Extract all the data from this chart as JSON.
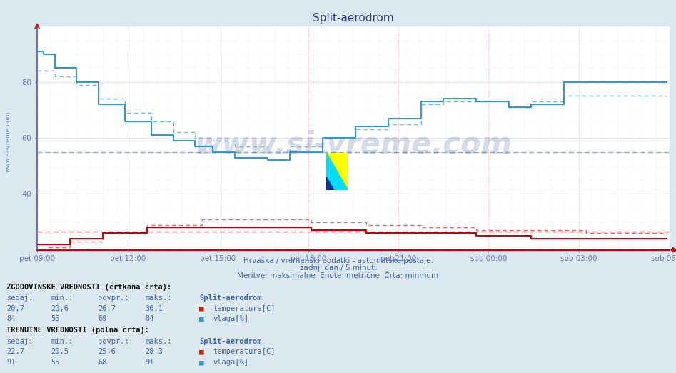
{
  "title": "Split-aerodrom",
  "bg_color": "#dce8f0",
  "plot_bg_color": "#ffffff",
  "grid_color_h": "#ffaaaa",
  "grid_color_v": "#ffaaaa",
  "grid_color_minor": "#e0e8f0",
  "x_ticks_labels": [
    "pet 09:00",
    "pet 12:00",
    "pet 15:00",
    "pet 18:00",
    "pet 21:00",
    "sob 00:00",
    "sob 03:00",
    "sob 06:00"
  ],
  "x_ticks_frac": [
    0.0,
    0.143,
    0.286,
    0.429,
    0.571,
    0.714,
    0.857,
    1.0
  ],
  "total_points": 288,
  "y_min": 20,
  "y_max": 100,
  "y_ticks": [
    40,
    60,
    80
  ],
  "temp_color": "#cc0000",
  "vlaga_solid_color": "#3399cc",
  "vlaga_dashed_color": "#66bbdd",
  "temp_dashed_color": "#dd6666",
  "hist_vlaga_avg": 55,
  "hist_temp_avg": 26.7,
  "watermark": "www.si-vreme.com",
  "watermark_color": "#1a3a8a",
  "subtitle1": "Hrvaška / vremenski podatki - avtomatske postaje.",
  "subtitle2": "zadnji dan / 5 minut.",
  "subtitle3": "Meritve: maksimalne  Enote: metrične  Črta: minmum",
  "logo_yellow": "#ffff00",
  "logo_cyan": "#00ddff",
  "logo_blue": "#003399",
  "vlaga_hist_profile_x": [
    0,
    3,
    8,
    18,
    28,
    40,
    52,
    62,
    72,
    80,
    90,
    105,
    115,
    130,
    145,
    160,
    175,
    185,
    200,
    215,
    225,
    240,
    288
  ],
  "vlaga_hist_profile_y": [
    84,
    84,
    82,
    79,
    74,
    69,
    66,
    62,
    60,
    59,
    57,
    55,
    57,
    60,
    63,
    65,
    72,
    73,
    73,
    71,
    73,
    75,
    84
  ],
  "vlaga_curr_profile_x": [
    0,
    3,
    8,
    18,
    28,
    40,
    52,
    62,
    72,
    80,
    90,
    105,
    115,
    130,
    145,
    160,
    175,
    185,
    200,
    215,
    225,
    240,
    288
  ],
  "vlaga_curr_profile_y": [
    91,
    90,
    85,
    80,
    72,
    66,
    61,
    59,
    57,
    55,
    53,
    52,
    55,
    60,
    64,
    67,
    73,
    74,
    73,
    71,
    72,
    80,
    91
  ],
  "temp_hist_profile_x": [
    0,
    5,
    15,
    30,
    50,
    75,
    100,
    125,
    150,
    175,
    200,
    225,
    250,
    288
  ],
  "temp_hist_profile_y": [
    20,
    21,
    23,
    26,
    29,
    31,
    31,
    30,
    29,
    28,
    27,
    27,
    26,
    20
  ],
  "temp_curr_profile_x": [
    0,
    5,
    15,
    30,
    50,
    75,
    100,
    125,
    150,
    175,
    200,
    225,
    250,
    288
  ],
  "temp_curr_profile_y": [
    22,
    22,
    24,
    26,
    28,
    28,
    28,
    27,
    26,
    26,
    25,
    24,
    24,
    22
  ],
  "footer_hist_label": "ZGODOVINSKE VREDNOSTI (črtkana črta):",
  "footer_curr_label": "TRENUTNE VREDNOSTI (polna črta):",
  "col_headers": [
    "sedaj:",
    "min.:",
    "povpr.:",
    "maks.:"
  ],
  "station_label": "Split-aerodrom",
  "hist_temp_row": [
    "20,7",
    "20,6",
    "26,7",
    "30,1"
  ],
  "hist_vlaga_row": [
    "84",
    "55",
    "69",
    "84"
  ],
  "curr_temp_row": [
    "22,7",
    "20,5",
    "25,6",
    "28,3"
  ],
  "curr_vlaga_row": [
    "91",
    "55",
    "68",
    "91"
  ],
  "temp_label": "temperatura[C]",
  "vlaga_label": "vlaga[%]"
}
